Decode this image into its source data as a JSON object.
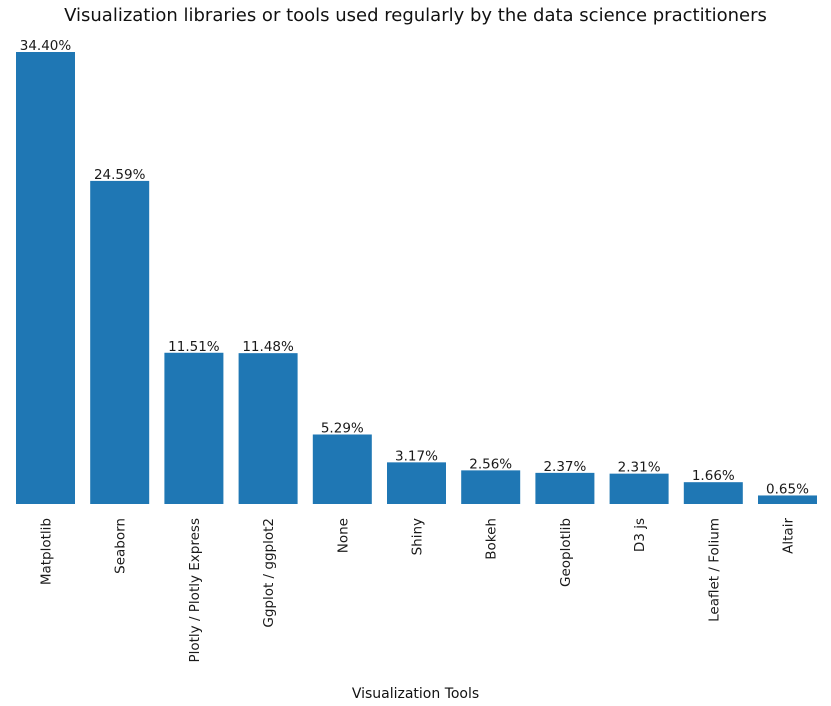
{
  "chart_data": {
    "type": "bar",
    "title": "Visualization libraries or tools used regularly by the data science practitioners",
    "xlabel": "Visualization Tools",
    "ylabel": "",
    "ylim": [
      0,
      34.4
    ],
    "grid": false,
    "bar_color": "#1f77b4",
    "categories": [
      "Matplotlib",
      "Seaborn",
      "Plotly / Plotly Express",
      "Ggplot / ggplot2",
      "None",
      "Shiny",
      "Bokeh",
      "Geoplotlib",
      "D3 js",
      "Leaflet / Folium",
      "Altair"
    ],
    "values": [
      34.4,
      24.59,
      11.51,
      11.48,
      5.29,
      3.17,
      2.56,
      2.37,
      2.31,
      1.66,
      0.65
    ],
    "value_labels": [
      "34.40%",
      "24.59%",
      "11.51%",
      "11.48%",
      "5.29%",
      "3.17%",
      "2.56%",
      "2.37%",
      "2.31%",
      "1.66%",
      "0.65%"
    ]
  }
}
